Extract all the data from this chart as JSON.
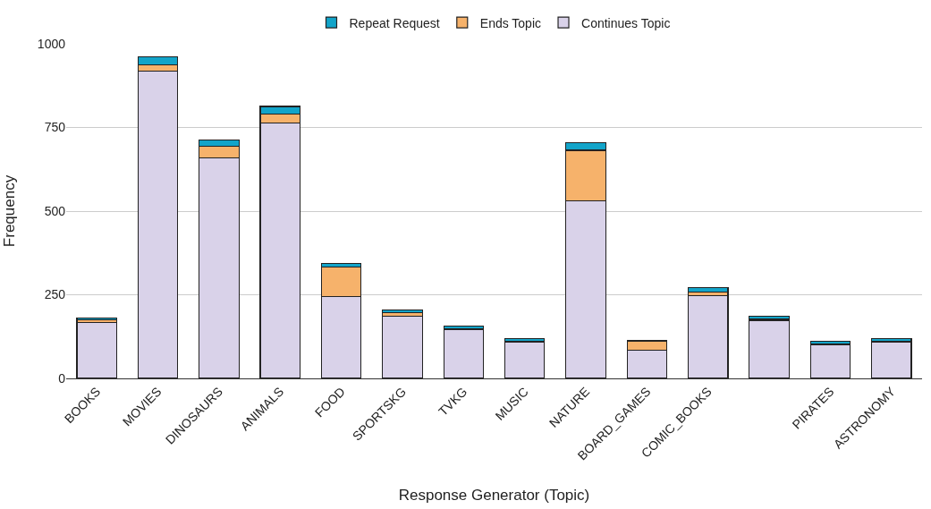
{
  "chart_data": {
    "type": "bar",
    "stacked": true,
    "xlabel": "Response Generator (Topic)",
    "ylabel": "Frequency",
    "categories": [
      "BOOKS",
      "MOVIES",
      "DINOSAURS",
      "ANIMALS",
      "FOOD",
      "SPORTSKG",
      "TVKG",
      "MUSIC",
      "NATURE",
      "BOARD_GAMES",
      "COMIC_BOOKS",
      null,
      "PIRATES",
      "ASTRONOMY"
    ],
    "series": [
      {
        "name": "Continues Topic",
        "color": "#d9d2e9",
        "values": [
          167,
          919,
          660,
          763,
          244,
          185,
          146,
          109,
          531,
          85,
          247,
          174,
          100,
          108
        ]
      },
      {
        "name": "Ends Topic",
        "color": "#f6b26b",
        "values": [
          9,
          18,
          33,
          27,
          88,
          11,
          2,
          2,
          151,
          25,
          10,
          3,
          2,
          2
        ]
      },
      {
        "name": "Repeat Request",
        "color": "#12a4c9",
        "values": [
          4,
          24,
          19,
          23,
          11,
          8,
          9,
          8,
          23,
          3,
          14,
          9,
          9,
          10
        ]
      }
    ],
    "ylim": [
      0,
      1000
    ],
    "yticks": [
      0,
      250,
      500,
      750,
      1000
    ],
    "grid": "y",
    "legend": "top"
  }
}
